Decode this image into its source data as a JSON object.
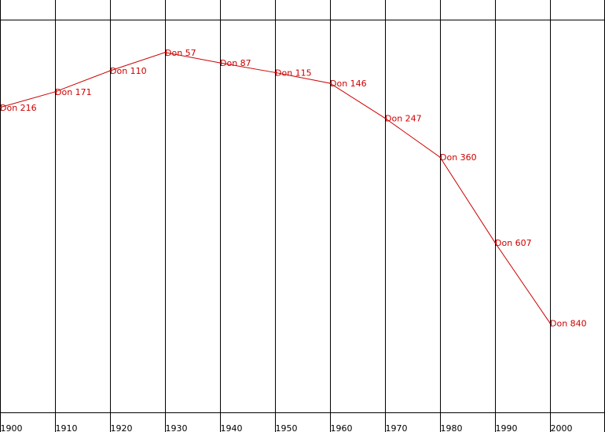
{
  "chart_data": {
    "type": "line",
    "x": [
      1900,
      1910,
      1920,
      1930,
      1940,
      1950,
      1960,
      1970,
      1980,
      1990,
      2000
    ],
    "x_tick_labels": [
      "1900",
      "1910",
      "1920",
      "1930",
      "1940",
      "1950",
      "1960",
      "1970",
      "1980",
      "1990",
      "2000"
    ],
    "series": [
      {
        "color": "#cc0000",
        "rank_values": [
          216,
          171,
          110,
          57,
          87,
          115,
          146,
          247,
          360,
          607,
          840
        ],
        "point_labels": [
          "Don 216",
          "Don 171",
          "Don 110",
          "Don 57",
          "Don 87",
          "Don 115",
          "Don 146",
          "Don 247",
          "Don 360",
          "Don 607",
          "Don 840"
        ]
      }
    ],
    "title": "",
    "xlabel": "",
    "ylabel": "",
    "y_axis": "rank, inverted (smaller rank plotted higher)",
    "grid": "vertical lines at each x tick",
    "line_color": "#cc0000",
    "grid_color": "#000000"
  }
}
